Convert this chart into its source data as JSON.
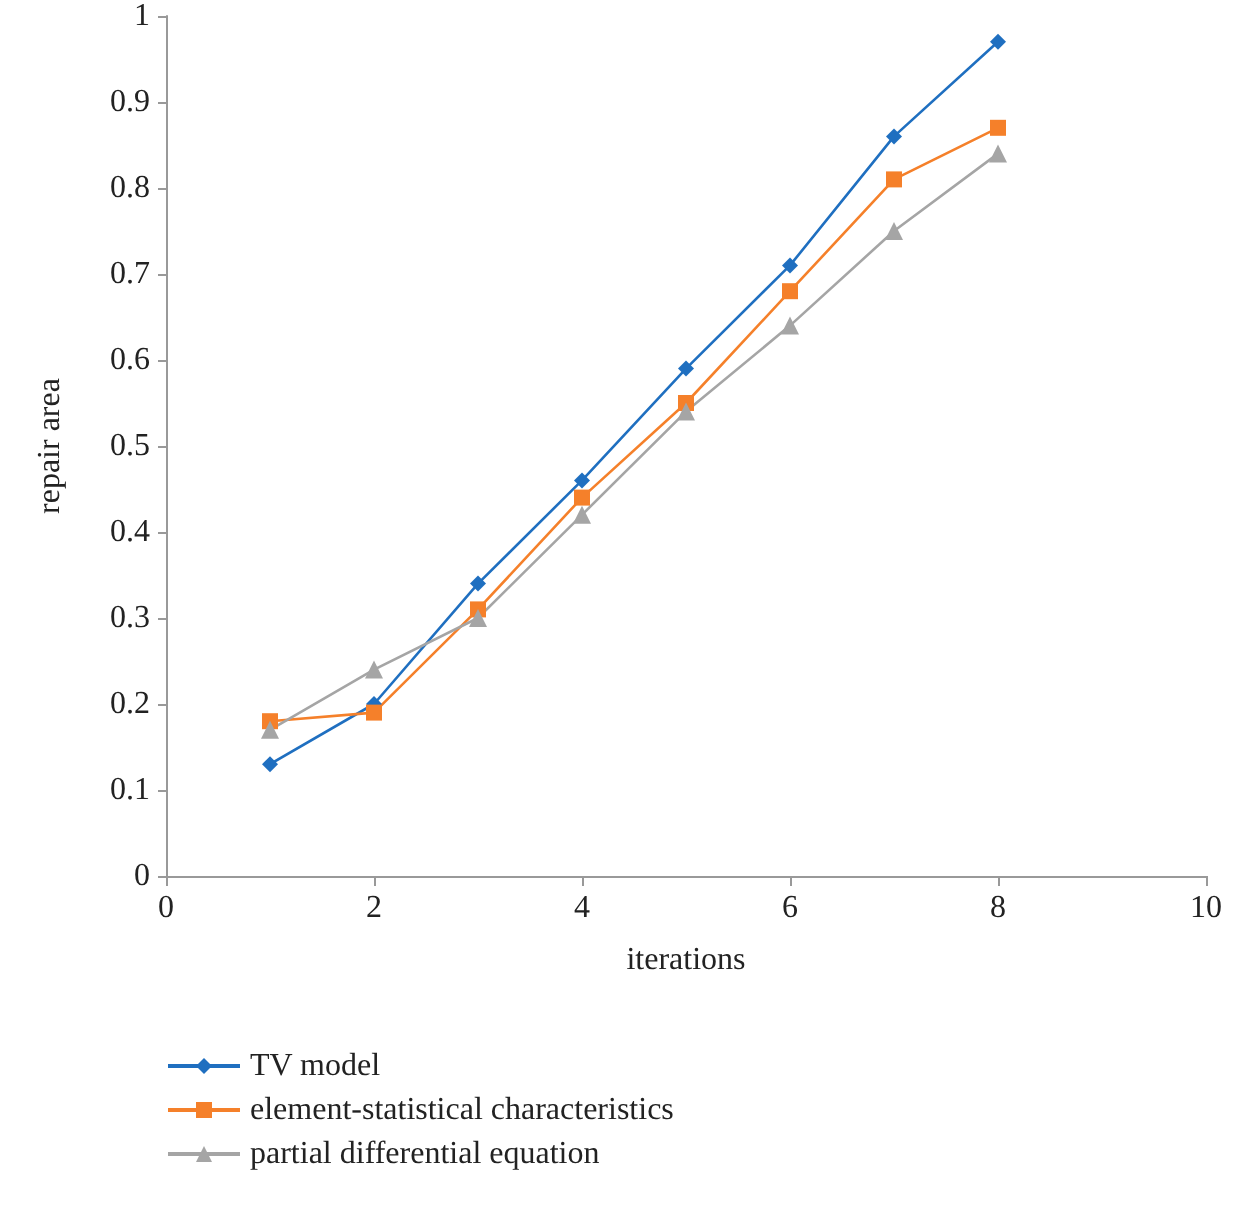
{
  "chart_data": {
    "type": "line",
    "xlabel": "iterations",
    "ylabel": "repair area",
    "x": [
      1,
      2,
      3,
      4,
      5,
      6,
      7,
      8
    ],
    "xlim": [
      0,
      10
    ],
    "xticks": [
      0,
      2,
      4,
      6,
      8,
      10
    ],
    "ylim": [
      0,
      1
    ],
    "yticks": [
      0,
      0.1,
      0.2,
      0.3,
      0.4,
      0.5,
      0.6,
      0.7,
      0.8,
      0.9,
      1
    ],
    "grid": false,
    "legend": "bottom left",
    "series": [
      {
        "name": "TV model",
        "color": "#1f6fc0",
        "marker": "diamond",
        "values": [
          0.13,
          0.2,
          0.34,
          0.46,
          0.59,
          0.71,
          0.86,
          0.97
        ]
      },
      {
        "name": "element-statistical characteristics",
        "color": "#f5802a",
        "marker": "square",
        "values": [
          0.18,
          0.19,
          0.31,
          0.44,
          0.55,
          0.68,
          0.81,
          0.87
        ]
      },
      {
        "name": "partial differential equation",
        "color": "#a5a5a5",
        "marker": "triangle",
        "values": [
          0.17,
          0.24,
          0.3,
          0.42,
          0.54,
          0.64,
          0.75,
          0.84
        ]
      }
    ]
  }
}
